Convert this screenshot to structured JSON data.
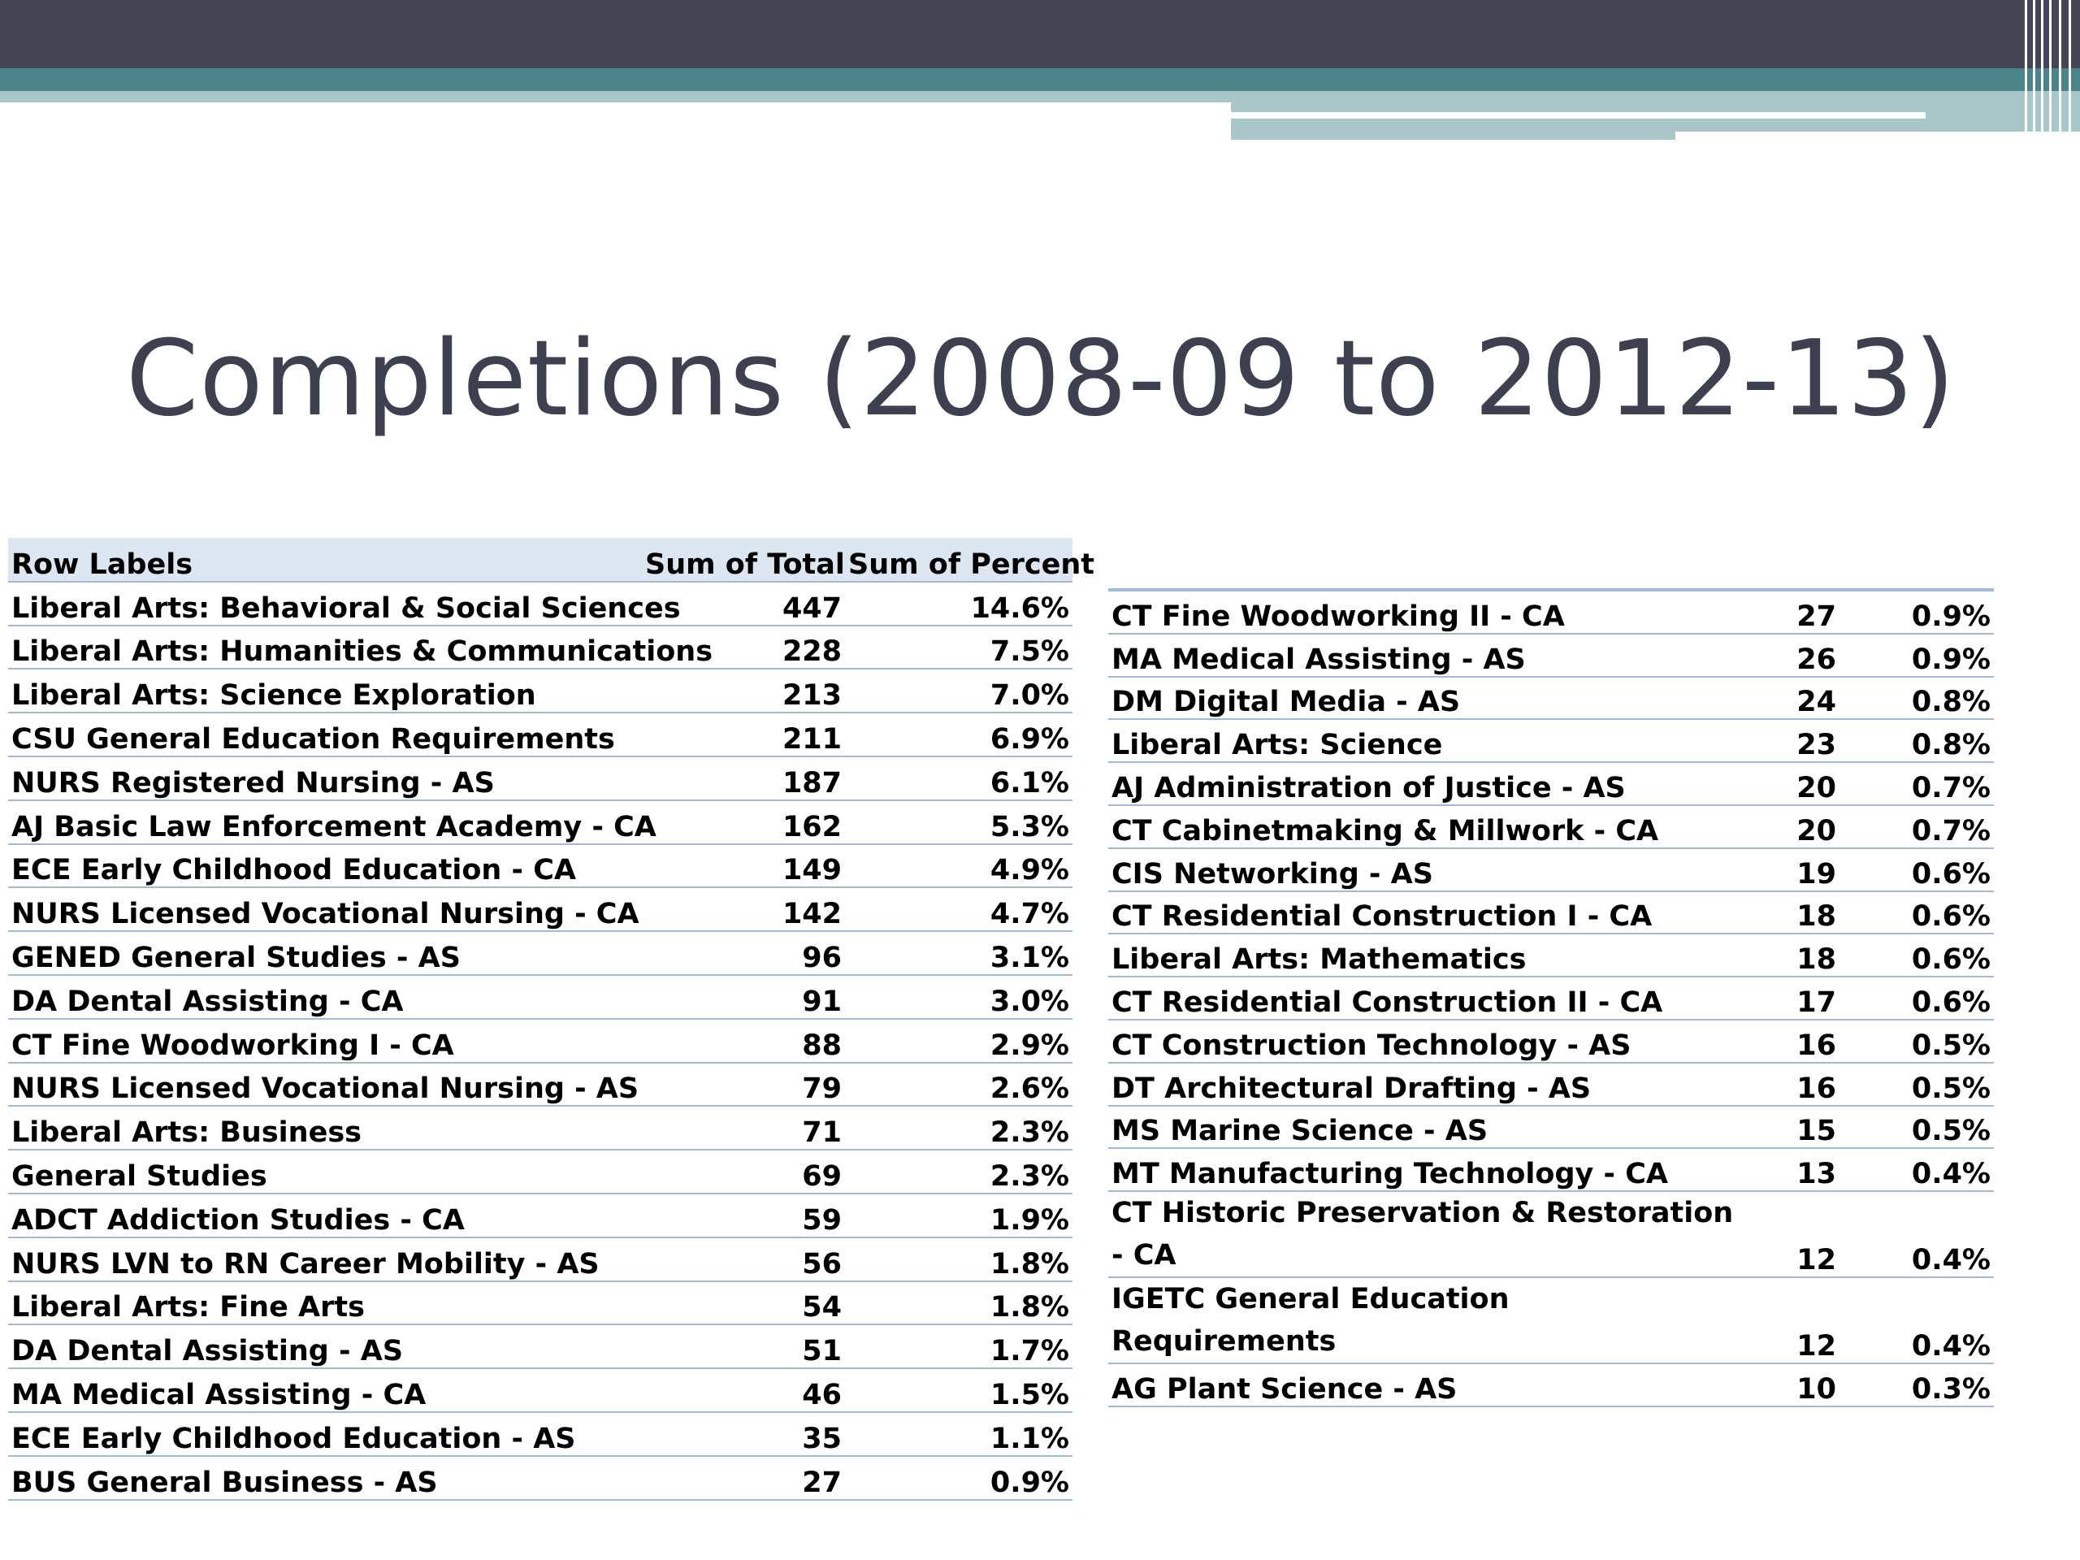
{
  "slide": {
    "title": "Completions (2008-09 to 2012-13)"
  },
  "table_left": {
    "headers": {
      "row_labels": "Row Labels",
      "sum_total": "Sum of Total",
      "sum_percent": "Sum of Percent"
    },
    "rows": [
      {
        "label": "Liberal Arts: Behavioral & Social Sciences",
        "total": "447",
        "percent": "14.6%"
      },
      {
        "label": "Liberal Arts: Humanities & Communications",
        "total": "228",
        "percent": "7.5%"
      },
      {
        "label": "Liberal Arts: Science Exploration",
        "total": "213",
        "percent": "7.0%"
      },
      {
        "label": "CSU General Education Requirements",
        "total": "211",
        "percent": "6.9%"
      },
      {
        "label": "NURS Registered Nursing - AS",
        "total": "187",
        "percent": "6.1%"
      },
      {
        "label": "AJ Basic Law Enforcement Academy - CA",
        "total": "162",
        "percent": "5.3%"
      },
      {
        "label": "ECE Early Childhood Education - CA",
        "total": "149",
        "percent": "4.9%"
      },
      {
        "label": "NURS Licensed Vocational Nursing - CA",
        "total": "142",
        "percent": "4.7%"
      },
      {
        "label": "GENED General Studies - AS",
        "total": "96",
        "percent": "3.1%"
      },
      {
        "label": "DA Dental Assisting - CA",
        "total": "91",
        "percent": "3.0%"
      },
      {
        "label": "CT Fine Woodworking I - CA",
        "total": "88",
        "percent": "2.9%"
      },
      {
        "label": "NURS Licensed Vocational Nursing - AS",
        "total": "79",
        "percent": "2.6%"
      },
      {
        "label": "Liberal Arts: Business",
        "total": "71",
        "percent": "2.3%"
      },
      {
        "label": "General Studies",
        "total": "69",
        "percent": "2.3%"
      },
      {
        "label": "ADCT Addiction Studies - CA",
        "total": "59",
        "percent": "1.9%"
      },
      {
        "label": "NURS LVN to RN Career Mobility - AS",
        "total": "56",
        "percent": "1.8%"
      },
      {
        "label": "Liberal Arts: Fine Arts",
        "total": "54",
        "percent": "1.8%"
      },
      {
        "label": "DA Dental Assisting - AS",
        "total": "51",
        "percent": "1.7%"
      },
      {
        "label": "MA Medical Assisting - CA",
        "total": "46",
        "percent": "1.5%"
      },
      {
        "label": "ECE Early Childhood Education - AS",
        "total": "35",
        "percent": "1.1%"
      },
      {
        "label": "BUS General Business - AS",
        "total": "27",
        "percent": "0.9%"
      }
    ]
  },
  "table_right": {
    "rows": [
      {
        "label": "CT Fine Woodworking II - CA",
        "total": "27",
        "percent": "0.9%"
      },
      {
        "label": "MA Medical Assisting - AS",
        "total": "26",
        "percent": "0.9%"
      },
      {
        "label": "DM Digital Media - AS",
        "total": "24",
        "percent": "0.8%"
      },
      {
        "label": "Liberal Arts: Science",
        "total": "23",
        "percent": "0.8%"
      },
      {
        "label": "AJ Administration of Justice - AS",
        "total": "20",
        "percent": "0.7%"
      },
      {
        "label": "CT Cabinetmaking & Millwork - CA",
        "total": "20",
        "percent": "0.7%"
      },
      {
        "label": "CIS Networking - AS",
        "total": "19",
        "percent": "0.6%"
      },
      {
        "label": "CT Residential Construction I - CA",
        "total": "18",
        "percent": "0.6%"
      },
      {
        "label": "Liberal Arts: Mathematics",
        "total": "18",
        "percent": "0.6%"
      },
      {
        "label": "CT Residential Construction II - CA",
        "total": "17",
        "percent": "0.6%"
      },
      {
        "label": "CT Construction Technology - AS",
        "total": "16",
        "percent": "0.5%"
      },
      {
        "label": "DT Architectural Drafting - AS",
        "total": "16",
        "percent": "0.5%"
      },
      {
        "label": "MS Marine Science - AS",
        "total": "15",
        "percent": "0.5%"
      },
      {
        "label": "MT Manufacturing Technology - CA",
        "total": "13",
        "percent": "0.4%"
      },
      {
        "label": "CT Historic Preservation & Restoration - CA",
        "total": "12",
        "percent": "0.4%",
        "wrap": true
      },
      {
        "label": "IGETC General Education Requirements",
        "total": "12",
        "percent": "0.4%",
        "wrap": true
      },
      {
        "label": "AG Plant Science - AS",
        "total": "10",
        "percent": "0.3%"
      }
    ]
  },
  "colors": {
    "header_dark": "#444655",
    "header_teal": "#4a8488",
    "header_light": "#a9c6c8",
    "title_text": "#3e404f",
    "table_header_fill": "#dce6f1",
    "table_rule": "#9fb9d8"
  }
}
